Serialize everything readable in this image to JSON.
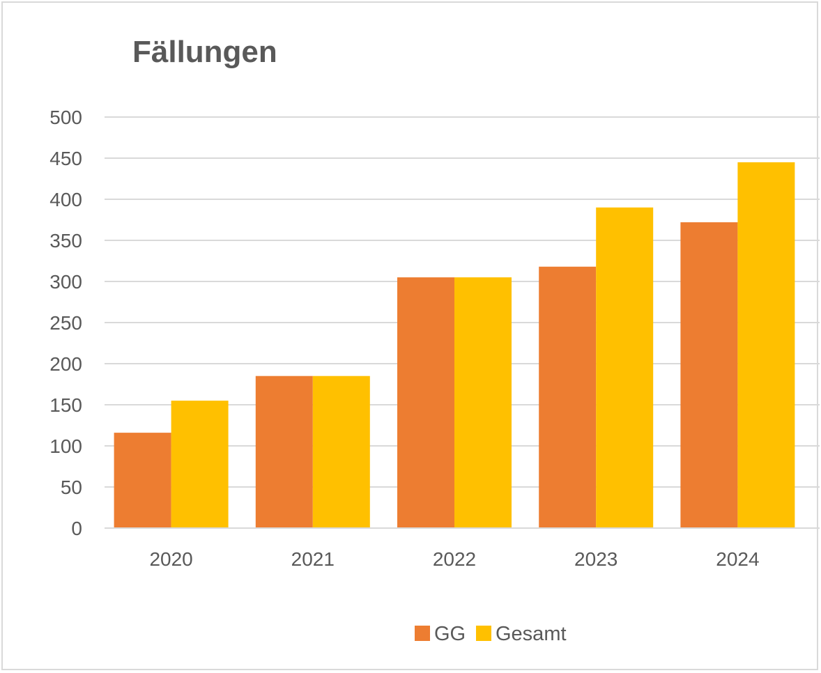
{
  "chart_data": {
    "type": "bar",
    "title": "Fällungen",
    "xlabel": "",
    "ylabel": "",
    "categories": [
      "2020",
      "2021",
      "2022",
      "2023",
      "2024"
    ],
    "series": [
      {
        "name": "GG",
        "color": "#ED7D31",
        "values": [
          116,
          185,
          305,
          318,
          372
        ]
      },
      {
        "name": "Gesamt",
        "color": "#FFC000",
        "values": [
          155,
          185,
          305,
          390,
          445
        ]
      }
    ],
    "ylim": [
      0,
      500
    ],
    "yticks": [
      0,
      50,
      100,
      150,
      200,
      250,
      300,
      350,
      400,
      450,
      500
    ],
    "grid": true,
    "legend_position": "bottom"
  }
}
